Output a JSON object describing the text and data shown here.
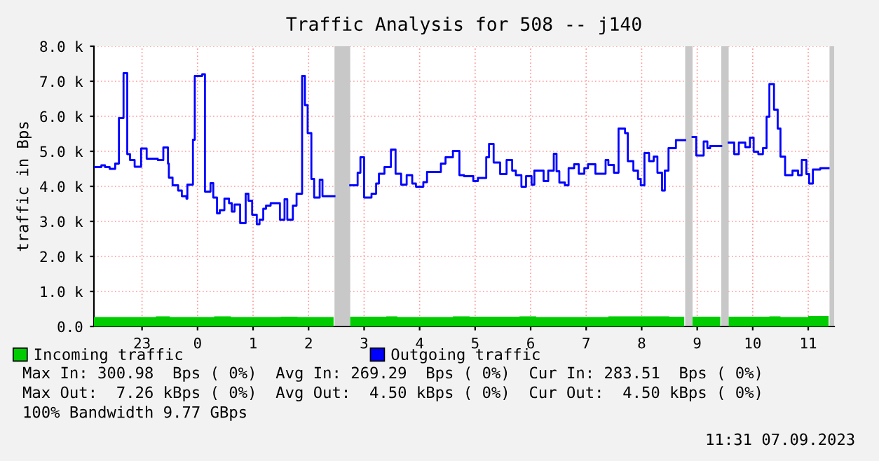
{
  "chart_data": {
    "type": "step",
    "title": "Traffic Analysis for 508 -- j140",
    "ylabel": "traffic in Bps",
    "xlim": [
      "2023-09-06T22:08",
      "2023-09-07T11:28"
    ],
    "ylim": [
      0,
      8000
    ],
    "xticks": [
      {
        "value": "2023-09-06T23:00",
        "label": "23"
      },
      {
        "value": "2023-09-07T00:00",
        "label": "0"
      },
      {
        "value": "2023-09-07T01:00",
        "label": "1"
      },
      {
        "value": "2023-09-07T02:00",
        "label": "2"
      },
      {
        "value": "2023-09-07T03:00",
        "label": "3"
      },
      {
        "value": "2023-09-07T04:00",
        "label": "4"
      },
      {
        "value": "2023-09-07T05:00",
        "label": "5"
      },
      {
        "value": "2023-09-07T06:00",
        "label": "6"
      },
      {
        "value": "2023-09-07T07:00",
        "label": "7"
      },
      {
        "value": "2023-09-07T08:00",
        "label": "8"
      },
      {
        "value": "2023-09-07T09:00",
        "label": "9"
      },
      {
        "value": "2023-09-07T10:00",
        "label": "10"
      },
      {
        "value": "2023-09-07T11:00",
        "label": "11"
      }
    ],
    "yticks": [
      {
        "value": 0,
        "label": "0.0"
      },
      {
        "value": 1000,
        "label": "1.0 k"
      },
      {
        "value": 2000,
        "label": "2.0 k"
      },
      {
        "value": 3000,
        "label": "3.0 k"
      },
      {
        "value": 4000,
        "label": "4.0 k"
      },
      {
        "value": 5000,
        "label": "5.0 k"
      },
      {
        "value": 6000,
        "label": "6.0 k"
      },
      {
        "value": 7000,
        "label": "7.0 k"
      },
      {
        "value": 8000,
        "label": "8.0 k"
      }
    ],
    "grid": true,
    "legend": "bottom",
    "marker": "none",
    "line_style": "solid",
    "series": [
      {
        "name": "Incoming traffic",
        "color": "#00cc00",
        "type": "area",
        "x": [
          "2023-09-06T22:08",
          "2023-09-06T23:15",
          "2023-09-06T23:30",
          "2023-09-07T00:18",
          "2023-09-07T00:36",
          "2023-09-07T01:30",
          "2023-09-07T01:48",
          "2023-09-07T02:27",
          "2023-09-07T02:28",
          "2023-09-07T02:45",
          "2023-09-07T03:24",
          "2023-09-07T03:36",
          "2023-09-07T04:36",
          "2023-09-07T04:54",
          "2023-09-07T05:48",
          "2023-09-07T06:06",
          "2023-09-07T07:24",
          "2023-09-07T08:30",
          "2023-09-07T08:46",
          "2023-09-07T08:47",
          "2023-09-07T08:55",
          "2023-09-07T09:25",
          "2023-09-07T09:26",
          "2023-09-07T09:34",
          "2023-09-07T10:18",
          "2023-09-07T10:30",
          "2023-09-07T11:00",
          "2023-09-07T11:22"
        ],
        "values": [
          270,
          290,
          270,
          290,
          270,
          280,
          270,
          270,
          null,
          280,
          290,
          270,
          290,
          280,
          290,
          270,
          290,
          280,
          280,
          null,
          280,
          280,
          null,
          280,
          290,
          270,
          300,
          300
        ]
      },
      {
        "name": "Outgoing traffic",
        "color": "#0000ff",
        "x": [
          "2023-09-06T22:08",
          "2023-09-06T22:16",
          "2023-09-06T22:20",
          "2023-09-06T22:25",
          "2023-09-06T22:31",
          "2023-09-06T22:35",
          "2023-09-06T22:40",
          "2023-09-06T22:44",
          "2023-09-06T22:47",
          "2023-09-06T22:52",
          "2023-09-06T22:59",
          "2023-09-06T23:05",
          "2023-09-06T23:17",
          "2023-09-06T23:23",
          "2023-09-06T23:28",
          "2023-09-06T23:29",
          "2023-09-06T23:33",
          "2023-09-06T23:39",
          "2023-09-06T23:43",
          "2023-09-06T23:48",
          "2023-09-06T23:49",
          "2023-09-06T23:55",
          "2023-09-06T23:57",
          "2023-09-07T00:05",
          "2023-09-07T00:08",
          "2023-09-07T00:14",
          "2023-09-07T00:17",
          "2023-09-07T00:21",
          "2023-09-07T00:24",
          "2023-09-07T00:29",
          "2023-09-07T00:34",
          "2023-09-07T00:37",
          "2023-09-07T00:40",
          "2023-09-07T00:46",
          "2023-09-07T00:52",
          "2023-09-07T00:55",
          "2023-09-07T00:59",
          "2023-09-07T01:04",
          "2023-09-07T01:07",
          "2023-09-07T01:11",
          "2023-09-07T01:14",
          "2023-09-07T01:19",
          "2023-09-07T01:29",
          "2023-09-07T01:34",
          "2023-09-07T01:37",
          "2023-09-07T01:43",
          "2023-09-07T01:47",
          "2023-09-07T01:53",
          "2023-09-07T01:56",
          "2023-09-07T01:59",
          "2023-09-07T02:03",
          "2023-09-07T02:06",
          "2023-09-07T02:12",
          "2023-09-07T02:15",
          "2023-09-07T02:27",
          "2023-09-07T02:28",
          "2023-09-07T02:45",
          "2023-09-07T02:53",
          "2023-09-07T02:56",
          "2023-09-07T03:00",
          "2023-09-07T03:08",
          "2023-09-07T03:13",
          "2023-09-07T03:16",
          "2023-09-07T03:22",
          "2023-09-07T03:29",
          "2023-09-07T03:34",
          "2023-09-07T03:40",
          "2023-09-07T03:46",
          "2023-09-07T03:52",
          "2023-09-07T03:56",
          "2023-09-07T04:04",
          "2023-09-07T04:08",
          "2023-09-07T04:23",
          "2023-09-07T04:28",
          "2023-09-07T04:36",
          "2023-09-07T04:43",
          "2023-09-07T04:48",
          "2023-09-07T04:58",
          "2023-09-07T05:03",
          "2023-09-07T05:12",
          "2023-09-07T05:15",
          "2023-09-07T05:20",
          "2023-09-07T05:27",
          "2023-09-07T05:34",
          "2023-09-07T05:40",
          "2023-09-07T05:44",
          "2023-09-07T05:50",
          "2023-09-07T05:55",
          "2023-09-07T06:01",
          "2023-09-07T06:04",
          "2023-09-07T06:14",
          "2023-09-07T06:19",
          "2023-09-07T06:25",
          "2023-09-07T06:28",
          "2023-09-07T06:31",
          "2023-09-07T06:37",
          "2023-09-07T06:41",
          "2023-09-07T06:47",
          "2023-09-07T06:52",
          "2023-09-07T06:58",
          "2023-09-07T07:02",
          "2023-09-07T07:10",
          "2023-09-07T07:21",
          "2023-09-07T07:24",
          "2023-09-07T07:30",
          "2023-09-07T07:35",
          "2023-09-07T07:42",
          "2023-09-07T07:45",
          "2023-09-07T07:51",
          "2023-09-07T07:56",
          "2023-09-07T07:59",
          "2023-09-07T08:03",
          "2023-09-07T08:08",
          "2023-09-07T08:13",
          "2023-09-07T08:17",
          "2023-09-07T08:22",
          "2023-09-07T08:25",
          "2023-09-07T08:29",
          "2023-09-07T08:37",
          "2023-09-07T08:46",
          "2023-09-07T08:47",
          "2023-09-07T08:55",
          "2023-09-07T08:59",
          "2023-09-07T09:07",
          "2023-09-07T09:11",
          "2023-09-07T09:14",
          "2023-09-07T09:25",
          "2023-09-07T09:26",
          "2023-09-07T09:34",
          "2023-09-07T09:40",
          "2023-09-07T09:45",
          "2023-09-07T09:52",
          "2023-09-07T09:57",
          "2023-09-07T10:01",
          "2023-09-07T10:06",
          "2023-09-07T10:11",
          "2023-09-07T10:15",
          "2023-09-07T10:18",
          "2023-09-07T10:23",
          "2023-09-07T10:27",
          "2023-09-07T10:30",
          "2023-09-07T10:35",
          "2023-09-07T10:43",
          "2023-09-07T10:49",
          "2023-09-07T10:53",
          "2023-09-07T10:58",
          "2023-09-07T11:01",
          "2023-09-07T11:05",
          "2023-09-07T11:13",
          "2023-09-07T11:22"
        ],
        "values": [
          4550,
          4600,
          4550,
          4500,
          4650,
          5950,
          7230,
          4920,
          4750,
          4560,
          5080,
          4790,
          4750,
          5110,
          4650,
          4250,
          4030,
          3880,
          3720,
          3650,
          4050,
          5330,
          7150,
          7200,
          3850,
          4090,
          3680,
          3230,
          3320,
          3650,
          3520,
          3280,
          3480,
          2950,
          3790,
          3590,
          3190,
          2920,
          3050,
          3360,
          3450,
          3520,
          3050,
          3630,
          3050,
          3450,
          3790,
          7150,
          6320,
          5520,
          4210,
          3680,
          4190,
          3720,
          3720,
          null,
          4030,
          4390,
          4830,
          3680,
          3790,
          4080,
          4360,
          4550,
          5050,
          4360,
          4050,
          4320,
          4080,
          3990,
          4120,
          4410,
          4650,
          4830,
          5010,
          4320,
          4290,
          4150,
          4240,
          4830,
          5210,
          4680,
          4350,
          4750,
          4450,
          4320,
          3990,
          4290,
          4050,
          4450,
          4150,
          4450,
          4930,
          4430,
          4110,
          4030,
          4520,
          4630,
          4360,
          4520,
          4630,
          4360,
          4750,
          4610,
          4390,
          5650,
          5520,
          4720,
          4450,
          4210,
          4030,
          4950,
          4720,
          4850,
          4390,
          3880,
          4450,
          5090,
          5320,
          5320,
          null,
          5410,
          4880,
          5280,
          5090,
          5150,
          5150,
          null,
          5250,
          4920,
          5250,
          5120,
          5390,
          4990,
          4920,
          5090,
          5990,
          6920,
          6190,
          5650,
          4850,
          4320,
          4450,
          4320,
          4750,
          4350,
          4080,
          4480,
          4520,
          4520
        ]
      }
    ],
    "bands": [
      {
        "axis": "x",
        "from": "2023-09-07T02:28",
        "to": "2023-09-07T02:45",
        "color": "#c8c8c8"
      },
      {
        "axis": "x",
        "from": "2023-09-07T08:47",
        "to": "2023-09-07T08:55",
        "color": "#c8c8c8"
      },
      {
        "axis": "x",
        "from": "2023-09-07T09:26",
        "to": "2023-09-07T09:34",
        "color": "#c8c8c8"
      },
      {
        "axis": "x",
        "from": "2023-09-07T11:23",
        "to": "2023-09-07T11:28",
        "color": "#c8c8c8"
      }
    ],
    "annotations": [
      "Max In: 300.98  Bps ( 0%)  Avg In: 269.29  Bps ( 0%)  Cur In: 283.51  Bps ( 0%)",
      "Max Out:  7.26 kBps ( 0%)  Avg Out:  4.50 kBps ( 0%)  Cur Out:  4.50 kBps ( 0%)",
      "100% Bandwidth 9.77 GBps",
      "11:31 07.09.2023"
    ]
  }
}
